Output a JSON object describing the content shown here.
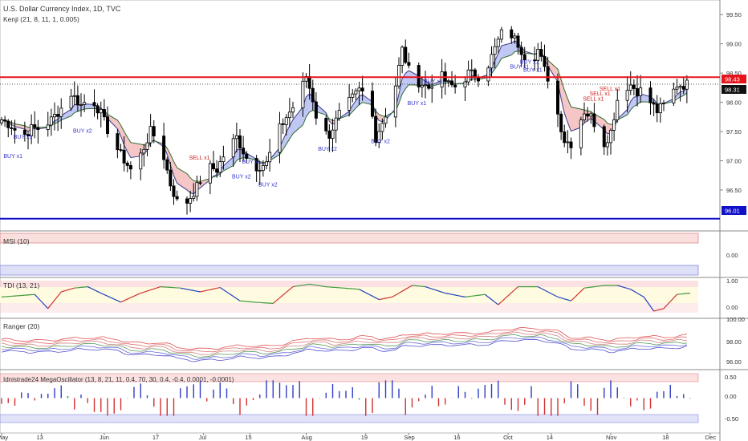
{
  "colors": {
    "bull": "#ffffff",
    "bear": "#000000",
    "wick": "#000000",
    "resistance": "#e8141b",
    "support": "#1010c8",
    "current_dotted": "#222222",
    "cloud_bull": "#aab4ee",
    "cloud_bear": "#f3b3b3",
    "ma_fast": "#3a3a8a",
    "ma_slow": "#2f6b2f",
    "buy_signal": "#3333cc",
    "sell_signal": "#cc2222",
    "band_red": "#f7c9c9",
    "band_blue": "#c8ccf2",
    "band_yellow": "#fffbe0",
    "histo_up": "#2f3cc8",
    "histo_down": "#d33030",
    "histo_flat": "#2e8b2e"
  },
  "chart_data": [
    {
      "panel": "main",
      "type": "candlestick",
      "title": "U.S. Dollar Currency Index, 1D, TVC",
      "indicator_label": "Kenji (21, 8, 11, 1, 0.005)",
      "ylim": [
        95.8,
        99.75
      ],
      "y_ticks": [
        "99.50",
        "99.00",
        "98.50",
        "98.00",
        "97.50",
        "97.00",
        "96.50"
      ],
      "y_tick_values": [
        99.5,
        99.0,
        98.5,
        98.0,
        97.5,
        97.0,
        96.5
      ],
      "x_ticks": [
        {
          "label": "May",
          "day": 0
        },
        {
          "label": "13",
          "day": 12
        },
        {
          "label": "Jun",
          "day": 31
        },
        {
          "label": "17",
          "day": 47
        },
        {
          "label": "Jul",
          "day": 61
        },
        {
          "label": "15",
          "day": 75
        },
        {
          "label": "Aug",
          "day": 92
        },
        {
          "label": "19",
          "day": 110
        },
        {
          "label": "Sep",
          "day": 123
        },
        {
          "label": "16",
          "day": 138
        },
        {
          "label": "Oct",
          "day": 153
        },
        {
          "label": "14",
          "day": 166
        },
        {
          "label": "Nov",
          "day": 184
        },
        {
          "label": "18",
          "day": 201
        },
        {
          "label": "Dec",
          "day": 214
        }
      ],
      "resistance": {
        "value": 98.43,
        "label": "98.43"
      },
      "support": {
        "value": 96.01,
        "label": "96.01"
      },
      "last_price": {
        "value": 98.31,
        "label": "98.31"
      },
      "anchors": [
        [
          0,
          97.7
        ],
        [
          3,
          97.6
        ],
        [
          6,
          97.4
        ],
        [
          9,
          97.55
        ],
        [
          12,
          97.55
        ],
        [
          15,
          97.7
        ],
        [
          18,
          97.9
        ],
        [
          21,
          98.15
        ],
        [
          24,
          97.95
        ],
        [
          27,
          98.1
        ],
        [
          30,
          97.8
        ],
        [
          33,
          97.4
        ],
        [
          36,
          97.1
        ],
        [
          39,
          96.85
        ],
        [
          42,
          97.1
        ],
        [
          45,
          97.5
        ],
        [
          48,
          97.3
        ],
        [
          51,
          96.6
        ],
        [
          54,
          96.15
        ],
        [
          56,
          96.3
        ],
        [
          59,
          96.55
        ],
        [
          62,
          96.9
        ],
        [
          65,
          96.85
        ],
        [
          68,
          97.2
        ],
        [
          71,
          97.4
        ],
        [
          74,
          97.05
        ],
        [
          77,
          96.9
        ],
        [
          80,
          96.95
        ],
        [
          83,
          97.45
        ],
        [
          86,
          97.75
        ],
        [
          89,
          98.0
        ],
        [
          92,
          98.45
        ],
        [
          94,
          98.05
        ],
        [
          96,
          97.5
        ],
        [
          99,
          97.45
        ],
        [
          102,
          97.8
        ],
        [
          105,
          98.0
        ],
        [
          108,
          98.2
        ],
        [
          111,
          98.1
        ],
        [
          113,
          97.4
        ],
        [
          116,
          97.8
        ],
        [
          119,
          98.3
        ],
        [
          121,
          98.9
        ],
        [
          123,
          98.55
        ],
        [
          126,
          98.35
        ],
        [
          129,
          98.25
        ],
        [
          132,
          98.5
        ],
        [
          135,
          98.3
        ],
        [
          138,
          98.25
        ],
        [
          141,
          98.5
        ],
        [
          144,
          98.45
        ],
        [
          147,
          98.65
        ],
        [
          150,
          99.05
        ],
        [
          152,
          99.3
        ],
        [
          154,
          99.15
        ],
        [
          156,
          99.0
        ],
        [
          158,
          98.8
        ],
        [
          160,
          98.7
        ],
        [
          162,
          98.9
        ],
        [
          164,
          98.55
        ],
        [
          166,
          98.3
        ],
        [
          168,
          97.8
        ],
        [
          170,
          97.35
        ],
        [
          172,
          97.3
        ],
        [
          174,
          97.6
        ],
        [
          176,
          97.85
        ],
        [
          178,
          97.75
        ],
        [
          180,
          97.55
        ],
        [
          182,
          97.3
        ],
        [
          184,
          97.5
        ],
        [
          186,
          98.05
        ],
        [
          188,
          98.25
        ],
        [
          190,
          98.3
        ],
        [
          192,
          98.2
        ],
        [
          194,
          98.2
        ],
        [
          196,
          98.0
        ],
        [
          198,
          97.85
        ],
        [
          200,
          97.95
        ],
        [
          202,
          98.1
        ],
        [
          204,
          98.3
        ],
        [
          206,
          98.3
        ],
        [
          208,
          98.32
        ]
      ],
      "signals": [
        {
          "label": "BUY x1",
          "kind": "buy",
          "day": 3,
          "price": 97.05
        },
        {
          "label": "BUY x1",
          "kind": "buy",
          "day": 6,
          "price": 97.38
        },
        {
          "label": "BUY x2",
          "kind": "buy",
          "day": 24,
          "price": 97.48
        },
        {
          "label": "SELL x1",
          "kind": "sell",
          "day": 59,
          "price": 97.02
        },
        {
          "label": "BUY x2",
          "kind": "buy",
          "day": 72,
          "price": 96.7
        },
        {
          "label": "BUY x1",
          "kind": "buy",
          "day": 75,
          "price": 96.95
        },
        {
          "label": "BUY x2",
          "kind": "buy",
          "day": 80,
          "price": 96.56
        },
        {
          "label": "BUY x2",
          "kind": "buy",
          "day": 98,
          "price": 97.17
        },
        {
          "label": "BUY x2",
          "kind": "buy",
          "day": 114,
          "price": 97.3
        },
        {
          "label": "BUY x1",
          "kind": "buy",
          "day": 125,
          "price": 97.95
        },
        {
          "label": "BUY x1",
          "kind": "buy",
          "day": 130,
          "price": 98.33
        },
        {
          "label": "BUY x1",
          "kind": "buy",
          "day": 156,
          "price": 98.58
        },
        {
          "label": "BUY x1",
          "kind": "buy",
          "day": 159,
          "price": 98.66
        },
        {
          "label": "BUY x1",
          "kind": "buy",
          "day": 160,
          "price": 98.52
        },
        {
          "label": "SELL x1",
          "kind": "sell",
          "day": 178,
          "price": 98.03
        },
        {
          "label": "SELL x1",
          "kind": "sell",
          "day": 180,
          "price": 98.12
        },
        {
          "label": "SELL x1",
          "kind": "sell",
          "day": 183,
          "price": 98.2
        }
      ]
    },
    {
      "panel": "msi",
      "type": "line",
      "label": "MSI (10)",
      "y_ticks": [
        "0.00"
      ]
    },
    {
      "panel": "tdi",
      "type": "line",
      "label": "TDI (13, 21)",
      "y_ticks": [
        "1.00",
        "0.00"
      ],
      "anchors": [
        [
          0,
          0.55
        ],
        [
          5,
          0.6
        ],
        [
          10,
          0.65
        ],
        [
          14,
          0.1
        ],
        [
          18,
          0.75
        ],
        [
          22,
          0.9
        ],
        [
          26,
          0.95
        ],
        [
          30,
          0.7
        ],
        [
          36,
          0.35
        ],
        [
          42,
          0.7
        ],
        [
          48,
          0.95
        ],
        [
          54,
          0.9
        ],
        [
          60,
          0.75
        ],
        [
          66,
          0.92
        ],
        [
          72,
          0.4
        ],
        [
          76,
          0.35
        ],
        [
          82,
          0.3
        ],
        [
          88,
          0.95
        ],
        [
          93,
          1.05
        ],
        [
          98,
          0.95
        ],
        [
          103,
          0.9
        ],
        [
          108,
          0.85
        ],
        [
          114,
          0.45
        ],
        [
          118,
          0.55
        ],
        [
          124,
          1.0
        ],
        [
          128,
          0.95
        ],
        [
          134,
          0.7
        ],
        [
          140,
          0.55
        ],
        [
          146,
          0.65
        ],
        [
          150,
          0.25
        ],
        [
          156,
          0.95
        ],
        [
          162,
          0.95
        ],
        [
          168,
          0.55
        ],
        [
          172,
          0.4
        ],
        [
          176,
          0.9
        ],
        [
          182,
          1.0
        ],
        [
          186,
          1.0
        ],
        [
          190,
          0.85
        ],
        [
          194,
          0.55
        ],
        [
          197,
          0.0
        ],
        [
          200,
          0.1
        ],
        [
          204,
          0.65
        ],
        [
          208,
          0.7
        ]
      ]
    },
    {
      "panel": "ranger",
      "type": "line",
      "label": "Ranger (20)",
      "y_ticks": [
        "100.00",
        "98.00",
        "96.00"
      ]
    },
    {
      "panel": "oscillator",
      "type": "bar",
      "label": "Idnistrade24 MegaOscillator (13, 8, 21, 11, 0.4, 70, 30, 0.4, -0.4, 0.0001, -0.0001)",
      "y_ticks": [
        "0.50",
        "0.00",
        "-0.50"
      ],
      "ylim": [
        -0.62,
        0.62
      ]
    }
  ]
}
